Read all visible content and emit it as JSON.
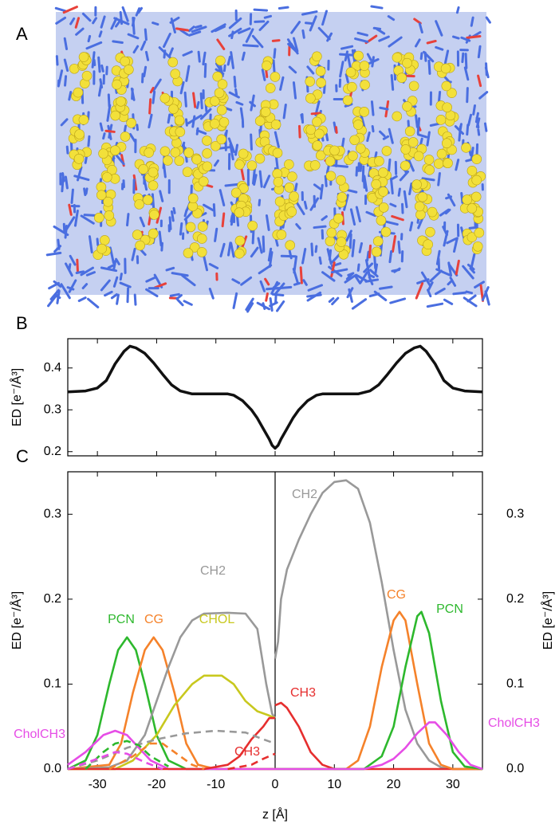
{
  "panel_a": {
    "label": "A"
  },
  "chart_data": [
    {
      "type": "line",
      "label": "B",
      "y_label": "ED [e⁻/Å³]",
      "xlim": [
        -35,
        35
      ],
      "xticks": [
        -30,
        -20,
        -10,
        0,
        10,
        20,
        30
      ],
      "ylim": [
        0.19,
        0.47
      ],
      "yticks": [
        0.2,
        0.3,
        0.4
      ],
      "series": [
        {
          "color": "#111111",
          "x": [
            -35,
            -32,
            -30,
            -28.5,
            -27,
            -25.5,
            -24.5,
            -23.5,
            -22,
            -20.5,
            -19,
            -17.5,
            -16,
            -14,
            -12,
            -10,
            -8,
            -7,
            -5.5,
            -4,
            -3,
            -2,
            -1,
            -0.5,
            0,
            0.5,
            1,
            2,
            3,
            4,
            5.5,
            7,
            8,
            10,
            12,
            14,
            16,
            17.5,
            19,
            20.5,
            22,
            23.5,
            24.5,
            25.5,
            27,
            28.5,
            30,
            32,
            35
          ],
          "values": [
            0.343,
            0.345,
            0.352,
            0.37,
            0.41,
            0.44,
            0.452,
            0.448,
            0.435,
            0.412,
            0.385,
            0.36,
            0.345,
            0.338,
            0.338,
            0.338,
            0.338,
            0.335,
            0.322,
            0.3,
            0.28,
            0.255,
            0.23,
            0.215,
            0.208,
            0.215,
            0.23,
            0.255,
            0.28,
            0.3,
            0.322,
            0.335,
            0.338,
            0.338,
            0.338,
            0.338,
            0.345,
            0.36,
            0.385,
            0.412,
            0.435,
            0.448,
            0.452,
            0.44,
            0.41,
            0.37,
            0.352,
            0.345,
            0.343
          ]
        }
      ]
    },
    {
      "type": "line",
      "label": "C",
      "x_label": "z [Å]",
      "y_label": "ED [e⁻/Å³]",
      "y2_label": "ED [e⁻/Å³]",
      "xlim": [
        -35,
        35
      ],
      "xticks": [
        -30,
        -20,
        -10,
        0,
        10,
        20,
        30
      ],
      "ylim": [
        0,
        0.35
      ],
      "yticks": [
        {
          "value": 0,
          "label": "0.0"
        },
        0.1,
        0.2,
        0.3
      ],
      "y2lim": [
        0,
        0.35
      ],
      "y2ticks": [
        {
          "value": 0,
          "label": "0.0"
        },
        0.1,
        0.2,
        0.3
      ],
      "series": [
        {
          "name": "PCN",
          "color": "#2db82d",
          "x": [
            -35,
            -32,
            -30,
            -28,
            -26.5,
            -25,
            -23.5,
            -22,
            -20,
            -18,
            -15,
            0
          ],
          "values": [
            0,
            0.01,
            0.04,
            0.1,
            0.14,
            0.155,
            0.14,
            0.1,
            0.04,
            0.01,
            0,
            0
          ]
        },
        {
          "name": "CG",
          "color": "#f5822a",
          "x": [
            -35,
            -28,
            -26,
            -24,
            -22,
            -20.5,
            -19,
            -17,
            -15,
            -13,
            -10,
            0
          ],
          "values": [
            0,
            0.005,
            0.03,
            0.09,
            0.14,
            0.155,
            0.14,
            0.09,
            0.03,
            0.005,
            0,
            0
          ]
        },
        {
          "name": "CH2",
          "color": "#999999",
          "x": [
            -35,
            -28,
            -25,
            -22,
            -20,
            -18,
            -16,
            -14,
            -12,
            -8,
            -5,
            -3,
            -1.5,
            -0.5,
            0
          ],
          "values": [
            0,
            0.002,
            0.01,
            0.04,
            0.08,
            0.12,
            0.155,
            0.175,
            0.183,
            0.184,
            0.183,
            0.165,
            0.1,
            0.065,
            0.06
          ]
        },
        {
          "name": "CHOL",
          "color": "#c8c81e",
          "x": [
            -35,
            -27,
            -24,
            -20,
            -17,
            -14,
            -12,
            -9,
            -7,
            -5,
            -3,
            -1,
            0
          ],
          "values": [
            0,
            0,
            0.01,
            0.04,
            0.075,
            0.1,
            0.11,
            0.11,
            0.1,
            0.08,
            0.068,
            0.063,
            0.06
          ]
        },
        {
          "name": "CholCH3",
          "color": "#e64de6",
          "x": [
            -35,
            -32,
            -29,
            -27,
            -25,
            -23,
            -21,
            -18,
            0
          ],
          "values": [
            0.005,
            0.02,
            0.04,
            0.045,
            0.04,
            0.025,
            0.01,
            0,
            0
          ]
        },
        {
          "name": "CH3",
          "color": "#e62e2e",
          "x": [
            -35,
            -12,
            -8,
            -6,
            -4,
            -2,
            -1,
            0
          ],
          "values": [
            0,
            0,
            0.005,
            0.015,
            0.035,
            0.05,
            0.06,
            0.06
          ]
        },
        {
          "color": "#999999",
          "dash": true,
          "x": [
            -35,
            -30,
            -25,
            -20,
            -15,
            -10,
            -5,
            -2,
            0
          ],
          "values": [
            0,
            0.01,
            0.025,
            0.035,
            0.042,
            0.045,
            0.043,
            0.035,
            0.03
          ]
        },
        {
          "color": "#2db82d",
          "dash": true,
          "x": [
            -32,
            -29,
            -27,
            -25,
            -23,
            -21,
            -18
          ],
          "values": [
            0,
            0.02,
            0.03,
            0.033,
            0.028,
            0.015,
            0.003
          ]
        },
        {
          "color": "#f5822a",
          "dash": true,
          "x": [
            -28,
            -24,
            -21,
            -19,
            -17,
            -14,
            -12
          ],
          "values": [
            0,
            0.015,
            0.03,
            0.03,
            0.02,
            0.005,
            0
          ]
        },
        {
          "color": "#e64de6",
          "dash": true,
          "x": [
            -35,
            -30,
            -27,
            -25,
            -22,
            -19
          ],
          "values": [
            0,
            0.012,
            0.02,
            0.018,
            0.008,
            0
          ]
        },
        {
          "color": "#e62e2e",
          "dash": true,
          "x": [
            -8,
            -4,
            -2,
            0
          ],
          "values": [
            0,
            0.005,
            0.012,
            0.018
          ]
        },
        {
          "name": "CH2",
          "color": "#999999",
          "x": [
            0,
            0.5,
            1,
            2,
            4,
            6,
            8,
            10,
            12,
            14,
            16,
            18,
            20,
            22,
            24,
            26,
            28,
            30,
            35
          ],
          "values": [
            0.13,
            0.15,
            0.2,
            0.235,
            0.27,
            0.3,
            0.325,
            0.338,
            0.34,
            0.33,
            0.29,
            0.22,
            0.14,
            0.07,
            0.03,
            0.01,
            0.002,
            0,
            0
          ]
        },
        {
          "name": "CH3",
          "color": "#e62e2e",
          "x": [
            0,
            1,
            2,
            4,
            6,
            8,
            10,
            35
          ],
          "values": [
            0.075,
            0.078,
            0.072,
            0.05,
            0.02,
            0.005,
            0,
            0
          ]
        },
        {
          "name": "CG",
          "color": "#f5822a",
          "x": [
            0,
            12,
            14,
            16,
            18,
            20,
            21,
            22,
            24,
            26,
            28,
            30,
            35
          ],
          "values": [
            0,
            0,
            0.01,
            0.05,
            0.12,
            0.175,
            0.185,
            0.175,
            0.1,
            0.03,
            0.005,
            0,
            0
          ]
        },
        {
          "name": "PCN",
          "color": "#2db82d",
          "x": [
            0,
            15,
            18,
            20,
            22,
            24,
            24.7,
            26,
            28,
            30,
            32,
            35
          ],
          "values": [
            0,
            0,
            0.015,
            0.05,
            0.12,
            0.18,
            0.185,
            0.16,
            0.08,
            0.02,
            0.003,
            0
          ]
        },
        {
          "name": "CholCH3",
          "color": "#e64de6",
          "x": [
            0,
            15,
            18,
            20,
            22,
            24,
            26,
            27,
            29,
            31,
            33,
            35
          ],
          "values": [
            0,
            0,
            0.005,
            0.012,
            0.025,
            0.042,
            0.055,
            0.055,
            0.04,
            0.02,
            0.005,
            0
          ]
        }
      ]
    }
  ]
}
